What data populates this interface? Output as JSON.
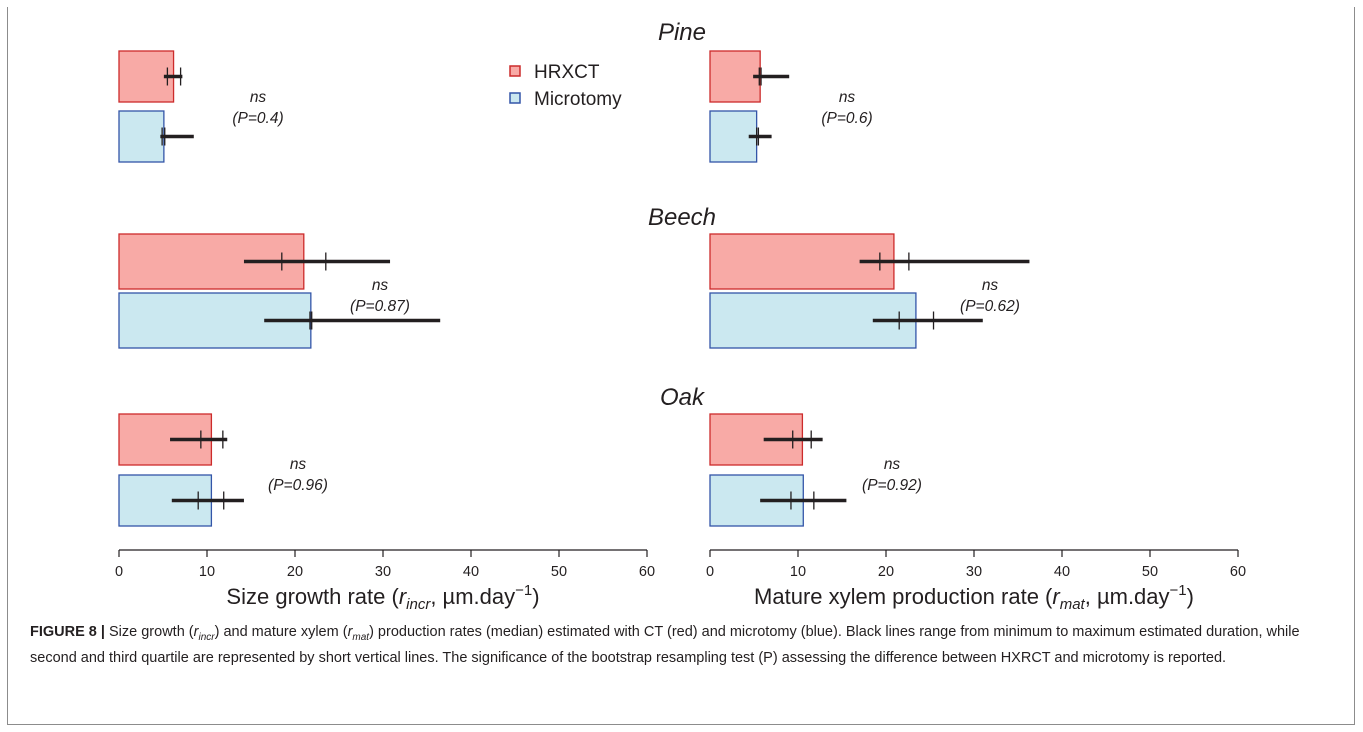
{
  "chart_data": {
    "type": "bar",
    "orientation": "horizontal",
    "legend": {
      "position": "top-center",
      "entries": [
        {
          "label": "HRXCT",
          "color": "#f8aaa6",
          "edge": "#cc2b2b"
        },
        {
          "label": "Microtomy",
          "color": "#cbe8f0",
          "edge": "#3355a8"
        }
      ]
    },
    "groups": [
      {
        "species": "Pine",
        "panels": [
          {
            "panel": "size",
            "test": "ns",
            "p_label": "(P=0.4)",
            "bars": [
              {
                "series": "HRXCT",
                "median": 6.2,
                "min": 5.1,
                "max": 7.2,
                "q1": 5.5,
                "q3": 7.0
              },
              {
                "series": "Microtomy",
                "median": 5.1,
                "min": 4.7,
                "max": 8.5,
                "q1": 4.9,
                "q3": 5.2
              }
            ]
          },
          {
            "panel": "mature",
            "test": "ns",
            "p_label": "(P=0.6)",
            "bars": [
              {
                "series": "HRXCT",
                "median": 5.7,
                "min": 4.9,
                "max": 9.0,
                "q1": 5.6,
                "q3": 5.8
              },
              {
                "series": "Microtomy",
                "median": 5.3,
                "min": 4.4,
                "max": 7.0,
                "q1": 5.3,
                "q3": 5.5
              }
            ]
          }
        ]
      },
      {
        "species": "Beech",
        "panels": [
          {
            "panel": "size",
            "test": "ns",
            "p_label": "(P=0.87)",
            "bars": [
              {
                "series": "HRXCT",
                "median": 21.0,
                "min": 14.2,
                "max": 30.8,
                "q1": 18.5,
                "q3": 23.5
              },
              {
                "series": "Microtomy",
                "median": 21.8,
                "min": 16.5,
                "max": 36.5,
                "q1": 21.7,
                "q3": 21.9
              }
            ]
          },
          {
            "panel": "mature",
            "test": "ns",
            "p_label": "(P=0.62)",
            "bars": [
              {
                "series": "HRXCT",
                "median": 20.9,
                "min": 17.0,
                "max": 36.3,
                "q1": 19.3,
                "q3": 22.6
              },
              {
                "series": "Microtomy",
                "median": 23.4,
                "min": 18.5,
                "max": 31.0,
                "q1": 21.5,
                "q3": 25.4
              }
            ]
          }
        ]
      },
      {
        "species": "Oak",
        "panels": [
          {
            "panel": "size",
            "test": "ns",
            "p_label": "(P=0.96)",
            "bars": [
              {
                "series": "HRXCT",
                "median": 10.5,
                "min": 5.8,
                "max": 12.3,
                "q1": 9.3,
                "q3": 11.8
              },
              {
                "series": "Microtomy",
                "median": 10.5,
                "min": 6.0,
                "max": 14.2,
                "q1": 9.0,
                "q3": 11.9
              }
            ]
          },
          {
            "panel": "mature",
            "test": "ns",
            "p_label": "(P=0.92)",
            "bars": [
              {
                "series": "HRXCT",
                "median": 10.5,
                "min": 6.1,
                "max": 12.8,
                "q1": 9.4,
                "q3": 11.5
              },
              {
                "series": "Microtomy",
                "median": 10.6,
                "min": 5.7,
                "max": 15.5,
                "q1": 9.2,
                "q3": 11.8
              }
            ]
          }
        ]
      }
    ],
    "axes": [
      {
        "id": "size",
        "xlim": [
          0,
          60
        ],
        "ticks": [
          0,
          10,
          20,
          30,
          40,
          50,
          60
        ],
        "xlabel_main": "Size growth rate (",
        "xlabel_sym": "r",
        "xlabel_sub": "incr",
        "xlabel_mid": ", µm.day",
        "xlabel_sup": "−1",
        "xlabel_end": ")"
      },
      {
        "id": "mature",
        "xlim": [
          0,
          60
        ],
        "ticks": [
          0,
          10,
          20,
          30,
          40,
          50,
          60
        ],
        "xlabel_main": "Mature xylem production rate (",
        "xlabel_sym": "r",
        "xlabel_sub": "mat",
        "xlabel_mid": ", µm.day",
        "xlabel_sup": "−1",
        "xlabel_end": ")"
      }
    ]
  },
  "caption": {
    "label": "FIGURE 8 |",
    "t1": " Size growth (",
    "sym1": "r",
    "sub1": "incr",
    "t2": ") and mature xylem (",
    "sym2": "r",
    "sub2": "mat",
    "t3": ") production rates (median) estimated with CT (red) and microtomy (blue). Black lines range from minimum to maximum estimated duration, while second and third quartile are represented by short vertical lines. The significance of the bootstrap resampling test (P) assessing the difference between HXRCT and microtomy is reported."
  }
}
